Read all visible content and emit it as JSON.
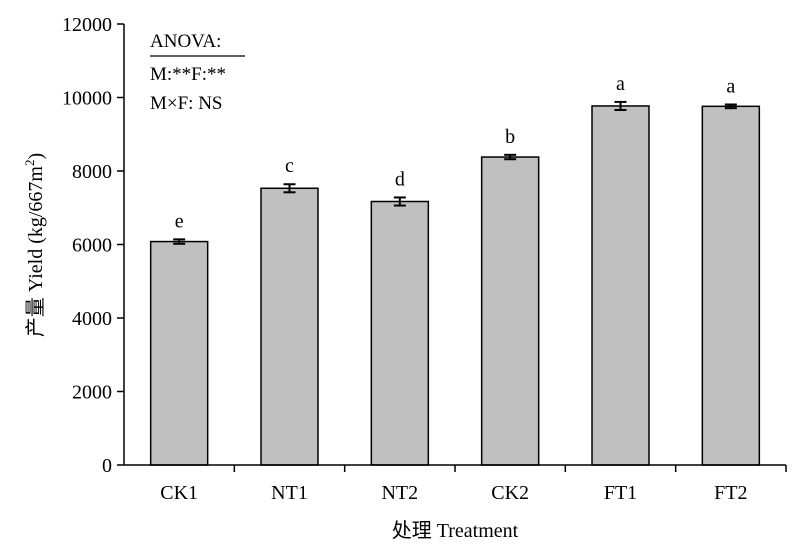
{
  "chart_data": {
    "type": "bar",
    "categories": [
      "CK1",
      "NT1",
      "NT2",
      "CK2",
      "FT1",
      "FT2"
    ],
    "values": [
      6080,
      7530,
      7170,
      8380,
      9770,
      9760
    ],
    "errors": [
      60,
      110,
      110,
      60,
      110,
      50
    ],
    "significance": [
      "e",
      "c",
      "d",
      "b",
      "a",
      "a"
    ],
    "xlabel": "处理 Treatment",
    "ylabel_main": "产量 Yield (kg/667m",
    "ylabel_sup": "2",
    "ylabel_close": ")",
    "ylim": [
      0,
      12000
    ],
    "yticks": [
      0,
      2000,
      4000,
      6000,
      8000,
      10000,
      12000
    ],
    "annotation": {
      "line1": "ANOVA:",
      "line2": "M:**F:**",
      "line3": "M×F: NS"
    },
    "bar_color": "#c0c0c0",
    "grid": false
  }
}
